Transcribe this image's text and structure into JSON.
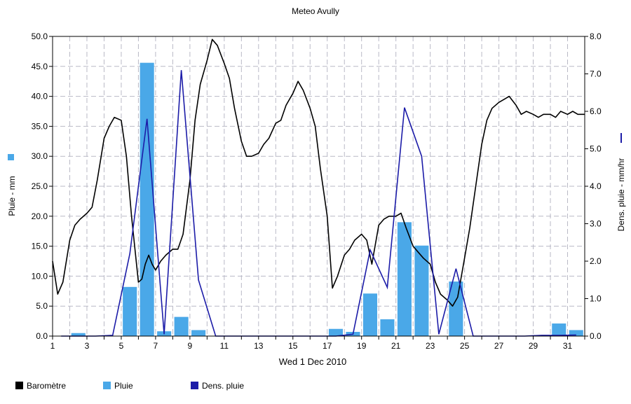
{
  "chart_data": {
    "type": "bar+line",
    "title": "Meteo  Avully",
    "xlabel": "Wed 1 Dec 2010",
    "ylabel_left": "Pluie - mm",
    "ylabel_right": "Dens. pluie - mm/hr",
    "xlim": [
      1,
      32
    ],
    "ylim_left": [
      0,
      50
    ],
    "ylim_right": [
      0,
      8
    ],
    "x_ticks": [
      "1",
      "3",
      "5",
      "7",
      "9",
      "11",
      "13",
      "15",
      "17",
      "19",
      "21",
      "23",
      "25",
      "27",
      "29",
      "31"
    ],
    "y_ticks_left": [
      "0.0",
      "5.0",
      "10.0",
      "15.0",
      "20.0",
      "25.0",
      "30.0",
      "35.0",
      "40.0",
      "45.0",
      "50.0"
    ],
    "y_ticks_right": [
      "0.0",
      "1.0",
      "2.0",
      "3.0",
      "4.0",
      "5.0",
      "6.0",
      "7.0",
      "8.0"
    ],
    "grid": true,
    "legend_position": "bottom-left",
    "series": [
      {
        "name": "Baromètre",
        "type": "line",
        "axis": "left",
        "color": "#000000",
        "x": [
          1.0,
          1.3,
          1.6,
          2.0,
          2.3,
          2.6,
          3.0,
          3.3,
          3.6,
          4.0,
          4.3,
          4.6,
          5.0,
          5.3,
          5.6,
          6.0,
          6.2,
          6.4,
          6.6,
          6.8,
          7.0,
          7.3,
          7.6,
          8.0,
          8.3,
          8.6,
          9.0,
          9.3,
          9.6,
          10.0,
          10.3,
          10.6,
          11.0,
          11.3,
          11.6,
          12.0,
          12.3,
          12.6,
          13.0,
          13.3,
          13.6,
          14.0,
          14.3,
          14.6,
          15.0,
          15.3,
          15.6,
          16.0,
          16.3,
          16.6,
          17.0,
          17.3,
          17.6,
          18.0,
          18.3,
          18.6,
          19.0,
          19.3,
          19.6,
          20.0,
          20.3,
          20.6,
          21.0,
          21.3,
          21.6,
          22.0,
          22.3,
          22.6,
          23.0,
          23.3,
          23.6,
          24.0,
          24.3,
          24.6,
          25.0,
          25.3,
          25.6,
          26.0,
          26.3,
          26.6,
          27.0,
          27.3,
          27.6,
          28.0,
          28.3,
          28.6,
          29.0,
          29.3,
          29.6,
          30.0,
          30.3,
          30.6,
          31.0,
          31.3,
          31.6,
          32.0
        ],
        "values": [
          12.5,
          7.0,
          9.0,
          16.0,
          18.5,
          19.5,
          20.5,
          21.5,
          26.0,
          33.0,
          35.0,
          36.5,
          36.0,
          30.0,
          20.0,
          9.0,
          9.5,
          12.0,
          13.5,
          12.0,
          11.0,
          12.5,
          13.5,
          14.5,
          14.5,
          17.0,
          26.0,
          36.0,
          42.0,
          46.0,
          49.5,
          48.5,
          45.5,
          43.0,
          38.0,
          32.5,
          30.0,
          30.0,
          30.5,
          32.0,
          33.0,
          35.5,
          36.0,
          38.5,
          40.5,
          42.5,
          41.0,
          38.0,
          35.0,
          28.0,
          20.0,
          8.0,
          10.0,
          13.5,
          14.5,
          16.0,
          17.0,
          16.0,
          12.0,
          18.5,
          19.5,
          20.0,
          20.0,
          20.5,
          18.0,
          15.0,
          14.0,
          13.0,
          12.0,
          9.0,
          7.0,
          6.0,
          5.0,
          6.5,
          13.0,
          18.0,
          24.0,
          32.0,
          36.0,
          38.0,
          39.0,
          39.5,
          40.0,
          38.5,
          37.0,
          37.5,
          37.0,
          36.5,
          37.0,
          37.0,
          36.5,
          37.5,
          37.0,
          37.5,
          37.0,
          37.0
        ]
      },
      {
        "name": "Pluie",
        "type": "bar",
        "axis": "left",
        "color": "#4aa8e8",
        "x": [
          2.5,
          3.5,
          4.5,
          5.5,
          6.5,
          7.5,
          8.5,
          9.5,
          10.5,
          11.5,
          12.5,
          13.5,
          14.5,
          15.5,
          16.5,
          17.5,
          18.5,
          19.5,
          20.5,
          21.5,
          22.5,
          23.5,
          24.5,
          25.5,
          26.5,
          27.5,
          28.5,
          29.5,
          30.5,
          31.5
        ],
        "values": [
          0.5,
          0.0,
          0.0,
          8.2,
          45.6,
          0.8,
          3.2,
          1.0,
          0.0,
          0.0,
          0.0,
          0.0,
          0.0,
          0.0,
          0.0,
          1.2,
          0.7,
          7.1,
          2.8,
          19.0,
          15.1,
          0.0,
          9.1,
          0.0,
          0.0,
          0.0,
          0.0,
          0.0,
          2.1,
          1.0
        ]
      },
      {
        "name": "Dens. pluie",
        "type": "line",
        "axis": "right",
        "color": "#1c1ca8",
        "x": [
          1.5,
          2.5,
          3.5,
          4.5,
          5.5,
          6.5,
          7.5,
          8.5,
          9.5,
          10.5,
          11.5,
          12.5,
          13.5,
          14.5,
          15.5,
          16.5,
          17.5,
          18.5,
          19.5,
          20.5,
          21.5,
          22.5,
          23.5,
          24.5,
          25.5,
          26.5,
          27.5,
          28.5,
          29.5,
          30.5,
          31.5
        ],
        "values": [
          0.0,
          0.0,
          0.0,
          0.02,
          2.2,
          5.8,
          0.05,
          7.1,
          1.5,
          0.0,
          0.0,
          0.0,
          0.0,
          0.0,
          0.0,
          0.0,
          0.0,
          0.05,
          2.3,
          1.3,
          6.1,
          4.8,
          0.05,
          1.8,
          0.0,
          0.0,
          0.0,
          0.0,
          0.02,
          0.02,
          0.03
        ]
      }
    ]
  }
}
